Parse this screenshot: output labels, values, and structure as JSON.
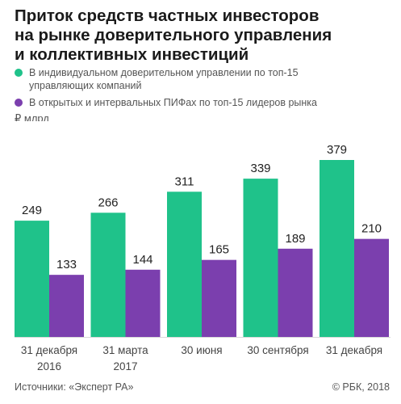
{
  "title_lines": [
    "Приток средств частных инвесторов",
    "на рынке доверительного управления",
    "и коллективных инвестиций"
  ],
  "legend": [
    {
      "lines": [
        "В индивидуальном доверительном управлении по топ-15",
        "управляющих компаний"
      ],
      "color": "#1fc28a"
    },
    {
      "lines": [
        "В открытых и интервальных ПИФах по топ-15 лидеров рынка"
      ],
      "color": "#7b3fae"
    }
  ],
  "unit": "₽ млрд",
  "footer": {
    "source": "Источники: «Эксперт РА»",
    "copyright": "© РБК, 2018"
  },
  "chart_data": {
    "type": "bar",
    "categories": [
      [
        "31 декабря",
        "2016"
      ],
      [
        "31 марта",
        "2017"
      ],
      [
        "30 июня"
      ],
      [
        "30 сентября"
      ],
      [
        "31 декабря"
      ]
    ],
    "series": [
      {
        "values": [
          249,
          266,
          311,
          339,
          379
        ],
        "color": "#1fc28a"
      },
      {
        "values": [
          133,
          144,
          165,
          189,
          210
        ],
        "color": "#7b3fae"
      }
    ],
    "ylim": [
      0,
      379
    ],
    "grid": false,
    "data_labels": true
  }
}
